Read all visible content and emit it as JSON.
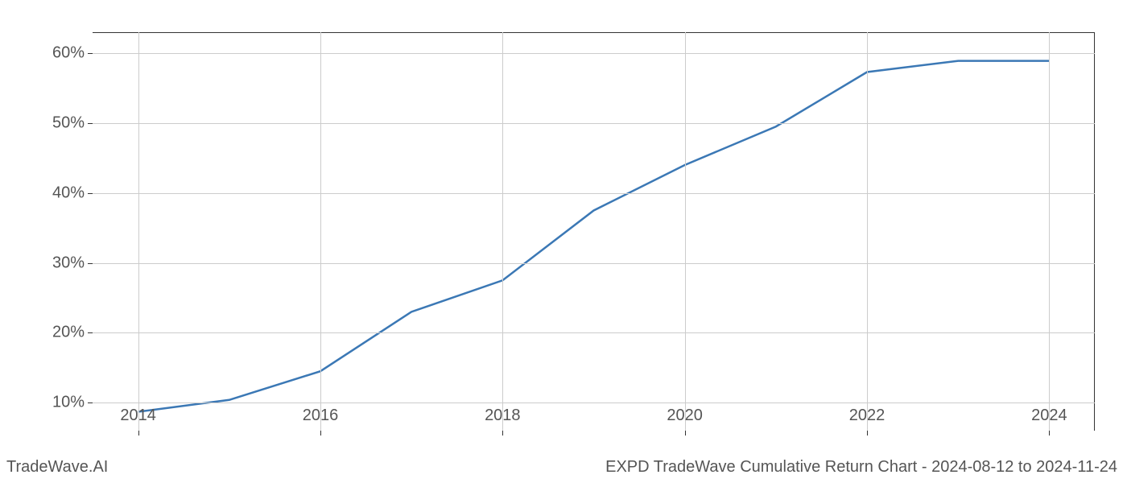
{
  "chart": {
    "type": "line",
    "background_color": "#ffffff",
    "grid_color": "#cccccc",
    "axis_color": "#333333",
    "line_color": "#3b78b5",
    "line_width": 2.5,
    "tick_label_color": "#555555",
    "tick_label_fontsize": 20,
    "footer_fontsize": 20,
    "footer_color": "#555555",
    "x_axis": {
      "ticks": [
        2014,
        2016,
        2018,
        2020,
        2022,
        2024
      ],
      "min": 2013.5,
      "max": 2024.5
    },
    "y_axis": {
      "ticks": [
        10,
        20,
        30,
        40,
        50,
        60
      ],
      "tick_suffix": "%",
      "min": 6,
      "max": 63
    },
    "data": {
      "x": [
        2014,
        2015,
        2016,
        2017,
        2018,
        2019,
        2020,
        2021,
        2022,
        2023,
        2024
      ],
      "y": [
        8.7,
        10.4,
        14.5,
        23.0,
        27.5,
        37.5,
        44.0,
        49.5,
        57.3,
        58.9,
        58.9
      ]
    }
  },
  "footer": {
    "left": "TradeWave.AI",
    "right": "EXPD TradeWave Cumulative Return Chart - 2024-08-12 to 2024-11-24"
  }
}
